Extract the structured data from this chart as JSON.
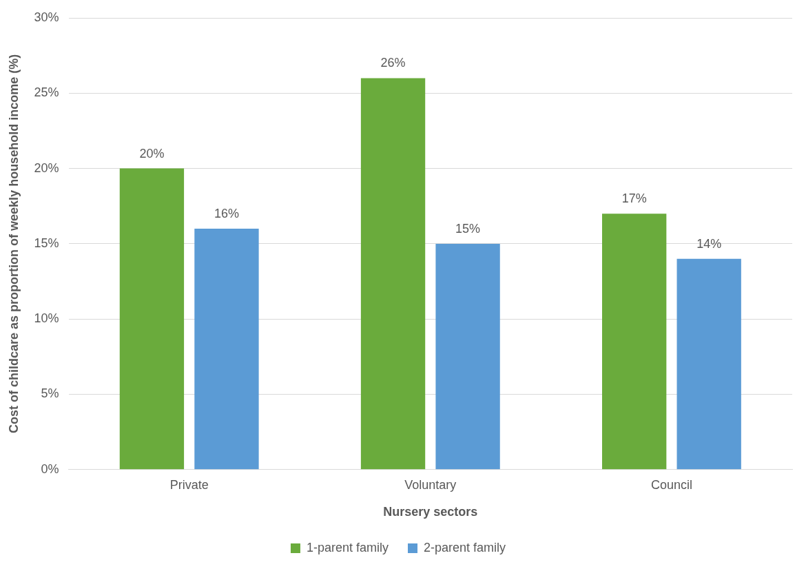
{
  "chart_data": {
    "type": "bar",
    "xlabel": "Nursery sectors",
    "ylabel": "Cost of childcare as proportion of weekly household income (%)",
    "categories": [
      "Private",
      "Voluntary",
      "Council"
    ],
    "series": [
      {
        "name": "1-parent family",
        "color": "#6aab3c",
        "values": [
          20,
          26,
          17
        ],
        "value_labels": [
          "20%",
          "26%",
          "17%"
        ]
      },
      {
        "name": "2-parent family",
        "color": "#5b9bd5",
        "values": [
          16,
          15,
          14
        ],
        "value_labels": [
          "16%",
          "15%",
          "14%"
        ]
      }
    ],
    "ylim": [
      0,
      30
    ],
    "yticks": [
      {
        "value": 0,
        "label": "0%"
      },
      {
        "value": 5,
        "label": "5%"
      },
      {
        "value": 10,
        "label": "10%"
      },
      {
        "value": 15,
        "label": "15%"
      },
      {
        "value": 20,
        "label": "20%"
      },
      {
        "value": 25,
        "label": "25%"
      },
      {
        "value": 30,
        "label": "30%"
      }
    ],
    "grid": "y",
    "legend": "bottom"
  }
}
